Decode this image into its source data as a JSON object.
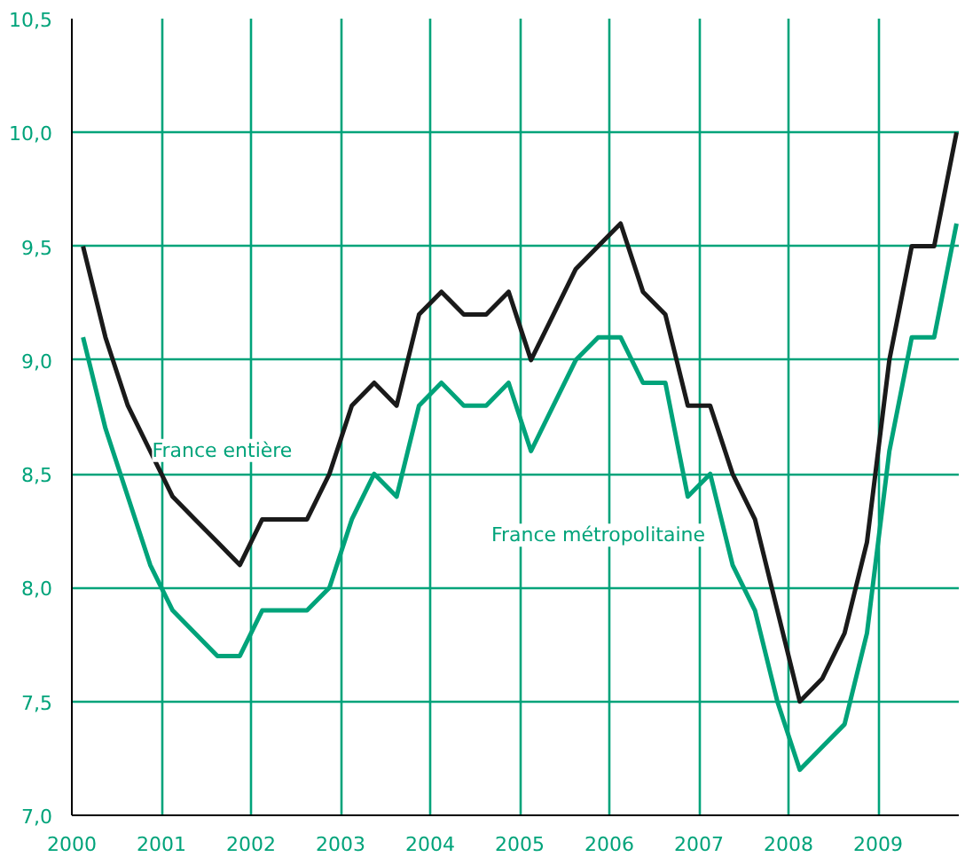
{
  "chart_data": {
    "type": "line",
    "x": [
      2000.125,
      2000.375,
      2000.625,
      2000.875,
      2001.125,
      2001.375,
      2001.625,
      2001.875,
      2002.125,
      2002.375,
      2002.625,
      2002.875,
      2003.125,
      2003.375,
      2003.625,
      2003.875,
      2004.125,
      2004.375,
      2004.625,
      2004.875,
      2005.125,
      2005.375,
      2005.625,
      2005.875,
      2006.125,
      2006.375,
      2006.625,
      2006.875,
      2007.125,
      2007.375,
      2007.625,
      2007.875,
      2008.125,
      2008.375,
      2008.625,
      2008.875,
      2009.125,
      2009.375,
      2009.625,
      2009.875
    ],
    "series": [
      {
        "name": "France entière",
        "color": "#1a1a1a",
        "values": [
          9.5,
          9.1,
          8.8,
          8.6,
          8.4,
          8.3,
          8.2,
          8.1,
          8.3,
          8.3,
          8.3,
          8.5,
          8.8,
          8.9,
          8.8,
          9.2,
          9.3,
          9.2,
          9.2,
          9.3,
          9.0,
          9.2,
          9.4,
          9.5,
          9.6,
          9.3,
          9.2,
          8.8,
          8.8,
          8.5,
          8.3,
          7.9,
          7.5,
          7.6,
          7.8,
          8.2,
          9.0,
          9.5,
          9.5,
          10.0
        ]
      },
      {
        "name": "France métropolitaine",
        "color": "#00a37a",
        "values": [
          9.1,
          8.7,
          8.4,
          8.1,
          7.9,
          7.8,
          7.7,
          7.7,
          7.9,
          7.9,
          7.9,
          8.0,
          8.3,
          8.5,
          8.4,
          8.8,
          8.9,
          8.8,
          8.8,
          8.9,
          8.6,
          8.8,
          9.0,
          9.1,
          9.1,
          8.9,
          8.9,
          8.4,
          8.5,
          8.1,
          7.9,
          7.5,
          7.2,
          7.3,
          7.4,
          7.8,
          8.6,
          9.1,
          9.1,
          9.6
        ]
      }
    ],
    "xlim": [
      2000,
      2009.9
    ],
    "ylim": [
      7.0,
      10.5
    ],
    "xticks": [
      2000,
      2001,
      2002,
      2003,
      2004,
      2005,
      2006,
      2007,
      2008,
      2009
    ],
    "yticks": [
      {
        "value": 7.0,
        "label": "7,0"
      },
      {
        "value": 7.5,
        "label": "7,5"
      },
      {
        "value": 8.0,
        "label": "8,0"
      },
      {
        "value": 8.5,
        "label": "8,5"
      },
      {
        "value": 9.0,
        "label": "9,0"
      },
      {
        "value": 9.5,
        "label": "9,5"
      },
      {
        "value": 10.0,
        "label": "10,0"
      },
      {
        "value": 10.5,
        "label": "10,5"
      }
    ],
    "grid": true,
    "legend": false,
    "marker": "none",
    "line_style": "solid"
  }
}
